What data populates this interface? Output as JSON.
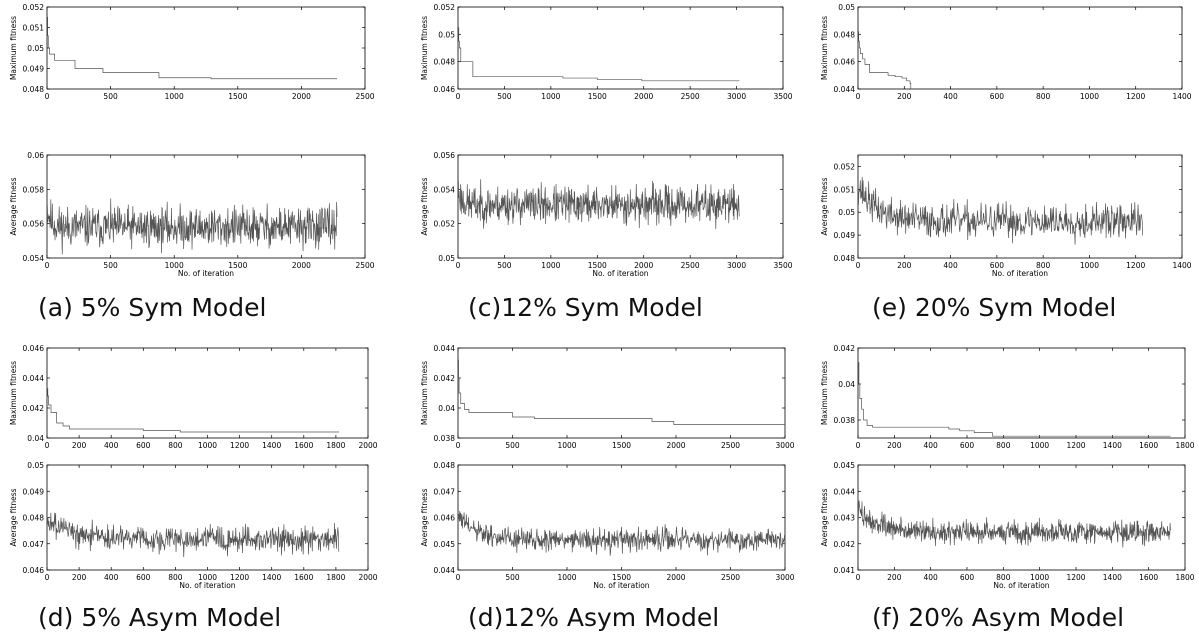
{
  "figure": {
    "captions": [
      "(a) 5% Sym Model",
      "(c)12% Sym Model",
      "(e) 20% Sym Model",
      "(d) 5% Asym Model",
      "(d)12% Asym Model",
      "(f) 20% Asym Model"
    ]
  },
  "chart_data": [
    {
      "panel": "a",
      "type": "line",
      "ylabel": "Maximum fitness",
      "xlabel": "",
      "xlim": [
        0,
        2500
      ],
      "xticks": [
        "0",
        "500",
        "1000",
        "1500",
        "2000",
        "2500"
      ],
      "ylim": [
        0.048,
        0.052
      ],
      "yticks": [
        "0.048",
        "0.049",
        "0.05",
        "0.051",
        "0.052"
      ],
      "series": [
        {
          "kind": "step",
          "line_color": "#555555",
          "x": [
            0,
            5,
            10,
            20,
            60,
            140,
            220,
            440,
            600,
            880,
            1100,
            1290,
            2280
          ],
          "y": [
            0.0515,
            0.0506,
            0.05,
            0.0497,
            0.0494,
            0.0494,
            0.049,
            0.0488,
            0.0488,
            0.04855,
            0.04855,
            0.0485,
            0.0485
          ]
        }
      ]
    },
    {
      "panel": "a",
      "type": "line",
      "ylabel": "Average fitness",
      "xlabel": "No. of iteration",
      "xlim": [
        0,
        2500
      ],
      "xticks": [
        "0",
        "500",
        "1000",
        "1500",
        "2000",
        "2500"
      ],
      "ylim": [
        0.054,
        0.06
      ],
      "yticks": [
        "0.054",
        "0.056",
        "0.058",
        "0.06"
      ],
      "series": [
        {
          "kind": "noise",
          "line_color": "#555555",
          "n": 2280,
          "base": 0.0558,
          "amp": 0.0011,
          "start": 0.057,
          "decay": 30,
          "seed": 11
        }
      ]
    },
    {
      "panel": "c",
      "type": "line",
      "ylabel": "Maximum fitness",
      "xlabel": "",
      "xlim": [
        0,
        3500
      ],
      "xticks": [
        "0",
        "500",
        "1000",
        "1500",
        "2000",
        "2500",
        "3000",
        "3500"
      ],
      "ylim": [
        0.046,
        0.052
      ],
      "yticks": [
        "0.046",
        "0.048",
        "0.05",
        "0.052"
      ],
      "series": [
        {
          "kind": "step",
          "line_color": "#555555",
          "x": [
            0,
            8,
            15,
            30,
            120,
            160,
            1130,
            1500,
            1980,
            2100,
            3030
          ],
          "y": [
            0.0505,
            0.0495,
            0.049,
            0.048,
            0.048,
            0.0469,
            0.0468,
            0.0467,
            0.0466,
            0.0466,
            0.0466
          ]
        }
      ]
    },
    {
      "panel": "c",
      "type": "line",
      "ylabel": "Average fitness",
      "xlabel": "No. of iteration",
      "xlim": [
        0,
        3500
      ],
      "xticks": [
        "0",
        "500",
        "1000",
        "1500",
        "2000",
        "2500",
        "3000",
        "3500"
      ],
      "ylim": [
        0.05,
        0.056
      ],
      "yticks": [
        "0.05",
        "0.052",
        "0.054",
        "0.056"
      ],
      "series": [
        {
          "kind": "noise",
          "line_color": "#555555",
          "n": 3030,
          "base": 0.0531,
          "amp": 0.001,
          "start": 0.054,
          "decay": 40,
          "seed": 23
        }
      ]
    },
    {
      "panel": "e",
      "type": "line",
      "ylabel": "Maximum fitness",
      "xlabel": "",
      "xlim": [
        0,
        1400
      ],
      "xticks": [
        "0",
        "200",
        "400",
        "600",
        "800",
        "1000",
        "1200",
        "1400"
      ],
      "ylim": [
        0.044,
        0.05
      ],
      "yticks": [
        "0.044",
        "0.046",
        "0.048",
        "0.05"
      ],
      "series": [
        {
          "kind": "step",
          "line_color": "#555555",
          "x": [
            0,
            3,
            6,
            10,
            20,
            30,
            50,
            70,
            130,
            160,
            190,
            210,
            225,
            228
          ],
          "y": [
            0.0482,
            0.0475,
            0.047,
            0.0466,
            0.0462,
            0.0458,
            0.0452,
            0.0452,
            0.045,
            0.0449,
            0.0448,
            0.0446,
            0.0444,
            0.044
          ]
        }
      ]
    },
    {
      "panel": "e",
      "type": "line",
      "ylabel": "Average fitness",
      "xlabel": "No. of iteration",
      "xlim": [
        0,
        1400
      ],
      "xticks": [
        "0",
        "200",
        "400",
        "600",
        "800",
        "1000",
        "1200",
        "1400"
      ],
      "ylim": [
        0.048,
        0.0525
      ],
      "yticks": [
        "0.048",
        "0.049",
        "0.05",
        "0.051",
        "0.052"
      ],
      "series": [
        {
          "kind": "noise",
          "line_color": "#555555",
          "n": 1230,
          "base": 0.0496,
          "amp": 0.0007,
          "start": 0.0512,
          "decay": 80,
          "seed": 37
        }
      ]
    },
    {
      "panel": "d5",
      "type": "line",
      "ylabel": "Maximum fitness",
      "xlabel": "",
      "xlim": [
        0,
        2000
      ],
      "xticks": [
        "0",
        "200",
        "400",
        "600",
        "800",
        "1000",
        "1200",
        "1400",
        "1600",
        "1800",
        "2000"
      ],
      "ylim": [
        0.04,
        0.046
      ],
      "yticks": [
        "0.04",
        "0.042",
        "0.044",
        "0.046"
      ],
      "series": [
        {
          "kind": "step",
          "line_color": "#555555",
          "x": [
            0,
            5,
            10,
            25,
            60,
            100,
            140,
            600,
            830,
            1000,
            1820
          ],
          "y": [
            0.0433,
            0.0428,
            0.0422,
            0.0417,
            0.041,
            0.0408,
            0.0406,
            0.0405,
            0.0404,
            0.0404,
            0.0404
          ]
        }
      ]
    },
    {
      "panel": "d5",
      "type": "line",
      "ylabel": "Average fitness",
      "xlabel": "No. of iteration",
      "xlim": [
        0,
        2000
      ],
      "xticks": [
        "0",
        "200",
        "400",
        "600",
        "800",
        "1000",
        "1200",
        "1400",
        "1600",
        "1800",
        "2000"
      ],
      "ylim": [
        0.046,
        0.05
      ],
      "yticks": [
        "0.046",
        "0.047",
        "0.048",
        "0.049",
        "0.05"
      ],
      "series": [
        {
          "kind": "noise",
          "line_color": "#555555",
          "n": 1820,
          "base": 0.04715,
          "amp": 0.00045,
          "start": 0.0481,
          "decay": 120,
          "seed": 49
        }
      ]
    },
    {
      "panel": "d12",
      "type": "line",
      "ylabel": "Maximum fitness",
      "xlabel": "",
      "xlim": [
        0,
        3000
      ],
      "xticks": [
        "0",
        "500",
        "1000",
        "1500",
        "2000",
        "2500",
        "3000"
      ],
      "ylim": [
        0.038,
        0.044
      ],
      "yticks": [
        "0.038",
        "0.04",
        "0.042",
        "0.044"
      ],
      "series": [
        {
          "kind": "step",
          "line_color": "#555555",
          "x": [
            0,
            5,
            10,
            25,
            60,
            100,
            500,
            700,
            1780,
            1980,
            3000
          ],
          "y": [
            0.0432,
            0.042,
            0.041,
            0.0403,
            0.0399,
            0.0397,
            0.0394,
            0.0393,
            0.0391,
            0.0389,
            0.0389
          ]
        }
      ]
    },
    {
      "panel": "d12",
      "type": "line",
      "ylabel": "Average fitness",
      "xlabel": "No. of iteration",
      "xlim": [
        0,
        3000
      ],
      "xticks": [
        "0",
        "500",
        "1000",
        "1500",
        "2000",
        "2500",
        "3000"
      ],
      "ylim": [
        0.044,
        0.048
      ],
      "yticks": [
        "0.044",
        "0.045",
        "0.046",
        "0.047",
        "0.048"
      ],
      "series": [
        {
          "kind": "noise",
          "line_color": "#555555",
          "n": 3000,
          "base": 0.04515,
          "amp": 0.0004,
          "start": 0.0461,
          "decay": 150,
          "seed": 61
        }
      ]
    },
    {
      "panel": "f",
      "type": "line",
      "ylabel": "Maximum fitness",
      "xlabel": "",
      "xlim": [
        0,
        1800
      ],
      "xticks": [
        "0",
        "200",
        "400",
        "600",
        "800",
        "1000",
        "1200",
        "1400",
        "1600",
        "1800"
      ],
      "ylim": [
        0.037,
        0.042
      ],
      "yticks": [
        "0.038",
        "0.04",
        "0.042"
      ],
      "series": [
        {
          "kind": "step",
          "line_color": "#555555",
          "x": [
            0,
            5,
            10,
            20,
            30,
            50,
            80,
            500,
            560,
            640,
            740,
            1720
          ],
          "y": [
            0.0412,
            0.04,
            0.0392,
            0.0386,
            0.038,
            0.0377,
            0.0376,
            0.0375,
            0.0374,
            0.0373,
            0.0371,
            0.0371
          ]
        }
      ]
    },
    {
      "panel": "f",
      "type": "line",
      "ylabel": "Average fitness",
      "xlabel": "No. of iteration",
      "xlim": [
        0,
        1800
      ],
      "xticks": [
        "0",
        "200",
        "400",
        "600",
        "800",
        "1000",
        "1200",
        "1400",
        "1600",
        "1800"
      ],
      "ylim": [
        0.041,
        0.045
      ],
      "yticks": [
        "0.041",
        "0.042",
        "0.043",
        "0.044",
        "0.045"
      ],
      "series": [
        {
          "kind": "noise",
          "line_color": "#555555",
          "n": 1720,
          "base": 0.04245,
          "amp": 0.0004,
          "start": 0.0433,
          "decay": 100,
          "seed": 73
        }
      ]
    }
  ]
}
